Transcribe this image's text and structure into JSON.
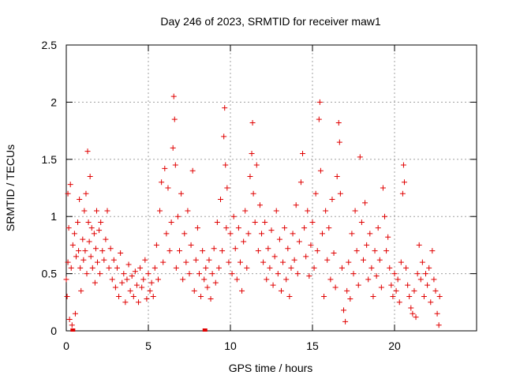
{
  "chart_data": {
    "type": "scatter",
    "title": "Day 246 of 2023, SRMTID for receiver maw1",
    "xlabel": "GPS time / hours",
    "ylabel": "SRMTID / TECUs",
    "xlim": [
      0,
      25
    ],
    "ylim": [
      0,
      2.5
    ],
    "x_ticks": [
      0,
      5,
      10,
      15,
      20
    ],
    "x_tick_labels": [
      "0",
      "5",
      "10",
      "15",
      "20"
    ],
    "y_ticks": [
      0,
      0.5,
      1,
      1.5,
      2,
      2.5
    ],
    "y_tick_labels": [
      "0",
      "0.5",
      "1",
      "1.5",
      "2",
      "2.5"
    ],
    "grid": true,
    "marker": "+",
    "series": [
      {
        "name": "SRMTID",
        "color": "#e00000",
        "points": [
          [
            0.0,
            0.45
          ],
          [
            0.05,
            0.3
          ],
          [
            0.1,
            0.6
          ],
          [
            0.1,
            1.2
          ],
          [
            0.15,
            0.9
          ],
          [
            0.2,
            0.1
          ],
          [
            0.25,
            1.28
          ],
          [
            0.3,
            0.55
          ],
          [
            0.35,
            0.05
          ],
          [
            0.4,
            0.75
          ],
          [
            0.5,
            0.85
          ],
          [
            0.55,
            0.15
          ],
          [
            0.6,
            0.65
          ],
          [
            0.7,
            0.95
          ],
          [
            0.75,
            0.7
          ],
          [
            0.8,
            1.15
          ],
          [
            0.85,
            0.55
          ],
          [
            0.9,
            0.35
          ],
          [
            1.0,
            0.8
          ],
          [
            1.05,
            0.62
          ],
          [
            1.1,
            1.05
          ],
          [
            1.15,
            0.7
          ],
          [
            1.2,
            1.2
          ],
          [
            1.25,
            0.5
          ],
          [
            1.3,
            1.57
          ],
          [
            1.35,
            0.95
          ],
          [
            1.4,
            0.78
          ],
          [
            1.45,
            1.35
          ],
          [
            1.5,
            0.65
          ],
          [
            1.55,
            0.9
          ],
          [
            1.6,
            0.55
          ],
          [
            1.7,
            0.85
          ],
          [
            1.75,
            0.42
          ],
          [
            1.8,
            0.72
          ],
          [
            1.85,
            1.05
          ],
          [
            1.9,
            0.6
          ],
          [
            2.0,
            0.88
          ],
          [
            2.05,
            0.5
          ],
          [
            2.1,
            0.95
          ],
          [
            2.2,
            0.7
          ],
          [
            2.3,
            0.62
          ],
          [
            2.4,
            0.8
          ],
          [
            2.5,
            1.05
          ],
          [
            2.6,
            0.55
          ],
          [
            2.7,
            0.72
          ],
          [
            2.8,
            0.45
          ],
          [
            2.9,
            0.62
          ],
          [
            3.0,
            0.38
          ],
          [
            3.1,
            0.55
          ],
          [
            3.2,
            0.3
          ],
          [
            3.3,
            0.68
          ],
          [
            3.4,
            0.42
          ],
          [
            3.5,
            0.5
          ],
          [
            3.6,
            0.25
          ],
          [
            3.7,
            0.45
          ],
          [
            3.8,
            0.58
          ],
          [
            3.9,
            0.35
          ],
          [
            4.0,
            0.48
          ],
          [
            4.1,
            0.3
          ],
          [
            4.2,
            0.52
          ],
          [
            4.3,
            0.4
          ],
          [
            4.4,
            0.25
          ],
          [
            4.5,
            0.55
          ],
          [
            4.6,
            0.38
          ],
          [
            4.7,
            0.45
          ],
          [
            4.8,
            0.62
          ],
          [
            4.9,
            0.28
          ],
          [
            5.0,
            0.5
          ],
          [
            5.1,
            0.35
          ],
          [
            5.2,
            0.42
          ],
          [
            5.3,
            0.3
          ],
          [
            5.4,
            0.55
          ],
          [
            5.5,
            0.75
          ],
          [
            5.6,
            0.45
          ],
          [
            5.7,
            1.05
          ],
          [
            5.8,
            1.3
          ],
          [
            5.9,
            0.6
          ],
          [
            6.0,
            1.42
          ],
          [
            6.1,
            0.85
          ],
          [
            6.2,
            1.25
          ],
          [
            6.3,
            0.7
          ],
          [
            6.4,
            0.95
          ],
          [
            6.5,
            1.6
          ],
          [
            6.55,
            2.05
          ],
          [
            6.6,
            1.85
          ],
          [
            6.65,
            1.45
          ],
          [
            6.7,
            0.55
          ],
          [
            6.8,
            1.0
          ],
          [
            6.9,
            0.7
          ],
          [
            7.0,
            1.2
          ],
          [
            7.1,
            0.45
          ],
          [
            7.2,
            0.85
          ],
          [
            7.3,
            0.6
          ],
          [
            7.4,
            1.05
          ],
          [
            7.5,
            0.5
          ],
          [
            7.6,
            0.75
          ],
          [
            7.7,
            1.4
          ],
          [
            7.8,
            0.35
          ],
          [
            7.9,
            0.62
          ],
          [
            8.0,
            0.9
          ],
          [
            8.1,
            0.5
          ],
          [
            8.2,
            0.3
          ],
          [
            8.3,
            0.7
          ],
          [
            8.4,
            0.45
          ],
          [
            8.5,
            0.55
          ],
          [
            8.6,
            0.38
          ],
          [
            8.7,
            0.62
          ],
          [
            8.8,
            0.28
          ],
          [
            8.9,
            0.5
          ],
          [
            9.0,
            0.72
          ],
          [
            9.1,
            0.42
          ],
          [
            9.2,
            0.95
          ],
          [
            9.3,
            0.55
          ],
          [
            9.4,
            1.15
          ],
          [
            9.5,
            0.7
          ],
          [
            9.6,
            1.7
          ],
          [
            9.65,
            1.95
          ],
          [
            9.7,
            1.45
          ],
          [
            9.75,
            0.9
          ],
          [
            9.8,
            1.25
          ],
          [
            9.9,
            0.6
          ],
          [
            10.0,
            0.85
          ],
          [
            10.1,
            0.5
          ],
          [
            10.2,
            1.0
          ],
          [
            10.3,
            0.72
          ],
          [
            10.4,
            0.45
          ],
          [
            10.5,
            0.9
          ],
          [
            10.6,
            0.6
          ],
          [
            10.7,
            0.35
          ],
          [
            10.8,
            0.78
          ],
          [
            10.9,
            1.05
          ],
          [
            11.0,
            0.55
          ],
          [
            11.1,
            0.85
          ],
          [
            11.2,
            1.35
          ],
          [
            11.3,
            1.55
          ],
          [
            11.35,
            1.82
          ],
          [
            11.4,
            1.2
          ],
          [
            11.5,
            0.95
          ],
          [
            11.6,
            1.45
          ],
          [
            11.7,
            0.7
          ],
          [
            11.8,
            1.1
          ],
          [
            11.9,
            0.85
          ],
          [
            12.0,
            0.6
          ],
          [
            12.1,
            0.95
          ],
          [
            12.2,
            0.45
          ],
          [
            12.3,
            0.72
          ],
          [
            12.4,
            0.55
          ],
          [
            12.5,
            0.88
          ],
          [
            12.6,
            0.4
          ],
          [
            12.7,
            0.65
          ],
          [
            12.8,
            1.05
          ],
          [
            12.9,
            0.5
          ],
          [
            13.0,
            0.8
          ],
          [
            13.1,
            0.35
          ],
          [
            13.2,
            0.6
          ],
          [
            13.3,
            0.9
          ],
          [
            13.4,
            0.45
          ],
          [
            13.5,
            0.72
          ],
          [
            13.6,
            0.3
          ],
          [
            13.7,
            0.55
          ],
          [
            13.8,
            0.85
          ],
          [
            13.9,
            0.62
          ],
          [
            14.0,
            1.1
          ],
          [
            14.1,
            0.5
          ],
          [
            14.2,
            0.78
          ],
          [
            14.3,
            1.3
          ],
          [
            14.4,
            1.55
          ],
          [
            14.5,
            0.9
          ],
          [
            14.6,
            0.65
          ],
          [
            14.7,
            1.05
          ],
          [
            14.8,
            0.48
          ],
          [
            14.9,
            0.75
          ],
          [
            15.0,
            0.95
          ],
          [
            15.1,
            0.55
          ],
          [
            15.2,
            1.2
          ],
          [
            15.3,
            0.7
          ],
          [
            15.4,
            1.85
          ],
          [
            15.45,
            2.0
          ],
          [
            15.5,
            1.4
          ],
          [
            15.6,
            0.85
          ],
          [
            15.7,
            0.3
          ],
          [
            15.8,
            1.05
          ],
          [
            15.9,
            0.62
          ],
          [
            16.0,
            0.9
          ],
          [
            16.1,
            0.45
          ],
          [
            16.2,
            1.15
          ],
          [
            16.3,
            0.68
          ],
          [
            16.4,
            0.38
          ],
          [
            16.5,
            1.35
          ],
          [
            16.6,
            1.82
          ],
          [
            16.65,
            1.65
          ],
          [
            16.7,
            1.2
          ],
          [
            16.8,
            0.55
          ],
          [
            16.9,
            0.18
          ],
          [
            17.0,
            0.08
          ],
          [
            17.1,
            0.35
          ],
          [
            17.2,
            0.6
          ],
          [
            17.3,
            0.28
          ],
          [
            17.4,
            0.85
          ],
          [
            17.5,
            0.5
          ],
          [
            17.6,
            1.05
          ],
          [
            17.7,
            0.7
          ],
          [
            17.8,
            0.4
          ],
          [
            17.9,
            1.52
          ],
          [
            18.0,
            0.95
          ],
          [
            18.1,
            0.62
          ],
          [
            18.2,
            1.12
          ],
          [
            18.3,
            0.75
          ],
          [
            18.4,
            0.45
          ],
          [
            18.5,
            0.85
          ],
          [
            18.6,
            0.55
          ],
          [
            18.7,
            0.3
          ],
          [
            18.8,
            0.7
          ],
          [
            18.9,
            0.48
          ],
          [
            19.0,
            0.9
          ],
          [
            19.1,
            0.62
          ],
          [
            19.2,
            0.38
          ],
          [
            19.3,
            1.25
          ],
          [
            19.4,
            1.0
          ],
          [
            19.5,
            0.7
          ],
          [
            19.6,
            0.82
          ],
          [
            19.7,
            0.55
          ],
          [
            19.8,
            0.4
          ],
          [
            19.9,
            0.3
          ],
          [
            20.0,
            0.5
          ],
          [
            20.1,
            0.35
          ],
          [
            20.2,
            0.45
          ],
          [
            20.3,
            0.25
          ],
          [
            20.4,
            0.6
          ],
          [
            20.5,
            1.2
          ],
          [
            20.55,
            1.45
          ],
          [
            20.6,
            1.3
          ],
          [
            20.7,
            0.55
          ],
          [
            20.8,
            0.4
          ],
          [
            20.9,
            0.3
          ],
          [
            21.0,
            0.2
          ],
          [
            21.1,
            0.15
          ],
          [
            21.2,
            0.35
          ],
          [
            21.3,
            0.12
          ],
          [
            21.4,
            0.5
          ],
          [
            21.5,
            0.75
          ],
          [
            21.6,
            0.45
          ],
          [
            21.7,
            0.6
          ],
          [
            21.8,
            0.3
          ],
          [
            21.9,
            0.5
          ],
          [
            22.0,
            0.4
          ],
          [
            22.1,
            0.55
          ],
          [
            22.2,
            0.25
          ],
          [
            22.3,
            0.7
          ],
          [
            22.4,
            0.45
          ],
          [
            22.5,
            0.35
          ],
          [
            22.6,
            0.15
          ],
          [
            22.7,
            0.05
          ],
          [
            22.75,
            0.3
          ]
        ]
      }
    ],
    "extra_markers": [
      [
        0.4,
        0.0
      ],
      [
        8.45,
        0.0
      ]
    ]
  }
}
